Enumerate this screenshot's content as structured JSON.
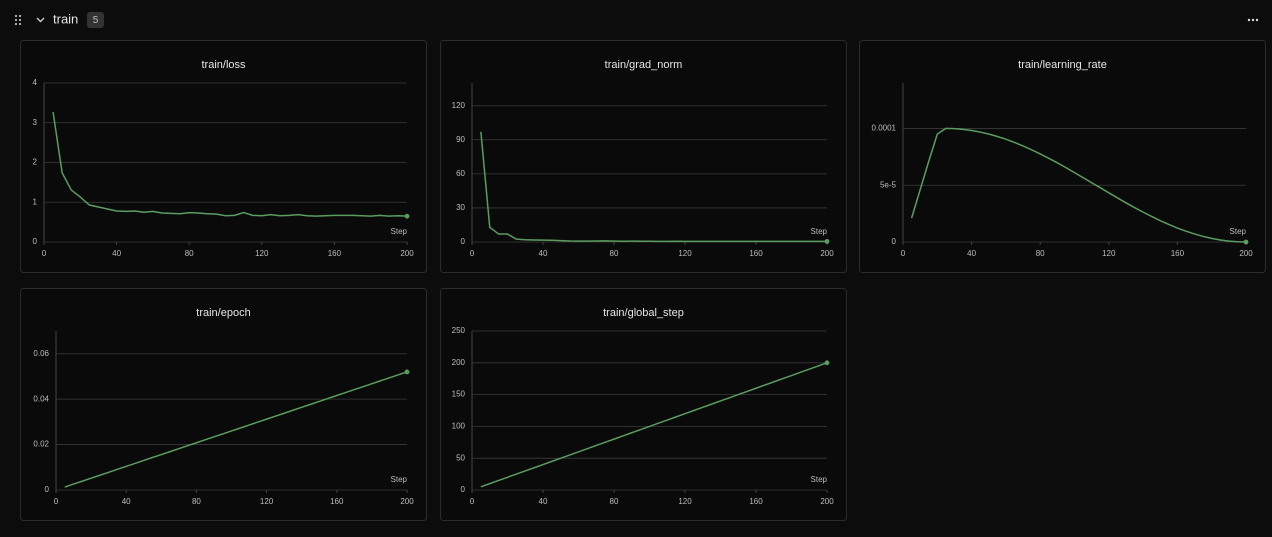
{
  "section": {
    "title": "train",
    "count": 5
  },
  "chart_data": [
    {
      "type": "line",
      "title": "train/loss",
      "x_label": "Step",
      "color": "#5a9e5f",
      "grid": true,
      "x": [
        5,
        10,
        15,
        20,
        25,
        30,
        35,
        40,
        45,
        50,
        55,
        60,
        65,
        70,
        75,
        80,
        85,
        90,
        95,
        100,
        105,
        110,
        115,
        120,
        125,
        130,
        135,
        140,
        145,
        150,
        155,
        160,
        165,
        170,
        175,
        180,
        185,
        190,
        195,
        200
      ],
      "values": [
        3.27,
        1.74,
        1.31,
        1.13,
        0.93,
        0.88,
        0.83,
        0.78,
        0.77,
        0.78,
        0.75,
        0.77,
        0.73,
        0.72,
        0.71,
        0.74,
        0.73,
        0.71,
        0.7,
        0.66,
        0.67,
        0.74,
        0.67,
        0.66,
        0.69,
        0.66,
        0.67,
        0.69,
        0.66,
        0.65,
        0.66,
        0.67,
        0.67,
        0.67,
        0.66,
        0.65,
        0.67,
        0.65,
        0.66,
        0.65
      ],
      "xlim": [
        0,
        200
      ],
      "xticks": [
        0,
        40,
        80,
        120,
        160,
        200
      ],
      "ylim": [
        0,
        4
      ],
      "yticks": [
        0,
        1,
        2,
        3,
        4
      ]
    },
    {
      "type": "line",
      "title": "train/grad_norm",
      "x_label": "Step",
      "color": "#5a9e5f",
      "grid": true,
      "x": [
        5,
        10,
        15,
        20,
        25,
        30,
        35,
        40,
        45,
        50,
        55,
        60,
        65,
        70,
        75,
        80,
        85,
        90,
        95,
        100,
        105,
        110,
        115,
        120,
        125,
        130,
        135,
        140,
        145,
        150,
        155,
        160,
        165,
        170,
        175,
        180,
        185,
        190,
        195,
        200
      ],
      "values": [
        97,
        13,
        7,
        7,
        2.5,
        2,
        1.8,
        1.7,
        1.5,
        1.2,
        0.9,
        0.8,
        0.8,
        0.9,
        1.0,
        0.8,
        0.7,
        0.8,
        0.7,
        0.7,
        0.6,
        0.6,
        0.7,
        0.6,
        0.6,
        0.6,
        0.6,
        0.5,
        0.6,
        0.5,
        0.5,
        0.5,
        0.5,
        0.5,
        0.5,
        0.5,
        0.5,
        0.5,
        0.5,
        0.5
      ],
      "xlim": [
        0,
        200
      ],
      "xticks": [
        0,
        40,
        80,
        120,
        160,
        200
      ],
      "ylim": [
        0,
        140
      ],
      "yticks": [
        0,
        30,
        60,
        90,
        120
      ]
    },
    {
      "type": "line",
      "title": "train/learning_rate",
      "x_label": "Step",
      "color": "#5a9e5f",
      "grid": true,
      "x": [
        5,
        10,
        15,
        20,
        25,
        30,
        35,
        40,
        45,
        50,
        55,
        60,
        65,
        70,
        75,
        80,
        85,
        90,
        95,
        100,
        105,
        110,
        115,
        120,
        125,
        130,
        135,
        140,
        145,
        150,
        155,
        160,
        165,
        170,
        175,
        180,
        185,
        190,
        195,
        200
      ],
      "values": [
        2.1e-05,
        4.6e-05,
        7.1e-05,
        9.5e-05,
        0.0001,
        9.98e-05,
        9.92e-05,
        9.82e-05,
        9.68e-05,
        9.51e-05,
        9.29e-05,
        9.05e-05,
        8.77e-05,
        8.46e-05,
        8.12e-05,
        7.75e-05,
        7.37e-05,
        6.97e-05,
        6.55e-05,
        6.11e-05,
        5.67e-05,
        5.22e-05,
        4.78e-05,
        4.33e-05,
        3.89e-05,
        3.45e-05,
        3.03e-05,
        2.63e-05,
        2.25e-05,
        1.88e-05,
        1.55e-05,
        1.23e-05,
        9.5e-06,
        7.1e-06,
        4.9e-06,
        3.2e-06,
        1.8e-06,
        8e-07,
        2e-07,
        0
      ],
      "xlim": [
        0,
        200
      ],
      "xticks": [
        0,
        40,
        80,
        120,
        160,
        200
      ],
      "ylim": [
        0,
        0.00014
      ],
      "yticks": [
        0,
        {
          "value": 5e-05,
          "label": "5e-5"
        },
        {
          "value": 0.0001,
          "label": "0.0001"
        }
      ]
    },
    {
      "type": "line",
      "title": "train/epoch",
      "x_label": "Step",
      "color": "#5a9e5f",
      "grid": true,
      "x": [
        5,
        10,
        15,
        20,
        25,
        30,
        35,
        40,
        45,
        50,
        55,
        60,
        65,
        70,
        75,
        80,
        85,
        90,
        95,
        100,
        105,
        110,
        115,
        120,
        125,
        130,
        135,
        140,
        145,
        150,
        155,
        160,
        165,
        170,
        175,
        180,
        185,
        190,
        195,
        200
      ],
      "values": [
        0.0013,
        0.0026,
        0.0039,
        0.0052,
        0.0065,
        0.0078,
        0.0091,
        0.0104,
        0.0117,
        0.013,
        0.0143,
        0.0156,
        0.0169,
        0.0182,
        0.0195,
        0.0208,
        0.0221,
        0.0234,
        0.0247,
        0.026,
        0.0273,
        0.0286,
        0.0299,
        0.0312,
        0.0325,
        0.0338,
        0.0351,
        0.0364,
        0.0377,
        0.039,
        0.0403,
        0.0416,
        0.0429,
        0.0442,
        0.0455,
        0.0468,
        0.0481,
        0.0494,
        0.0507,
        0.052
      ],
      "xlim": [
        0,
        200
      ],
      "xticks": [
        0,
        40,
        80,
        120,
        160,
        200
      ],
      "ylim": [
        0,
        0.07
      ],
      "yticks": [
        0,
        0.02,
        0.04,
        0.06
      ]
    },
    {
      "type": "line",
      "title": "train/global_step",
      "x_label": "Step",
      "color": "#5a9e5f",
      "grid": true,
      "x": [
        5,
        10,
        15,
        20,
        25,
        30,
        35,
        40,
        45,
        50,
        55,
        60,
        65,
        70,
        75,
        80,
        85,
        90,
        95,
        100,
        105,
        110,
        115,
        120,
        125,
        130,
        135,
        140,
        145,
        150,
        155,
        160,
        165,
        170,
        175,
        180,
        185,
        190,
        195,
        200
      ],
      "values": [
        5,
        10,
        15,
        20,
        25,
        30,
        35,
        40,
        45,
        50,
        55,
        60,
        65,
        70,
        75,
        80,
        85,
        90,
        95,
        100,
        105,
        110,
        115,
        120,
        125,
        130,
        135,
        140,
        145,
        150,
        155,
        160,
        165,
        170,
        175,
        180,
        185,
        190,
        195,
        200
      ],
      "xlim": [
        0,
        200
      ],
      "xticks": [
        0,
        40,
        80,
        120,
        160,
        200
      ],
      "ylim": [
        0,
        250
      ],
      "yticks": [
        0,
        50,
        100,
        150,
        200,
        250
      ]
    }
  ]
}
